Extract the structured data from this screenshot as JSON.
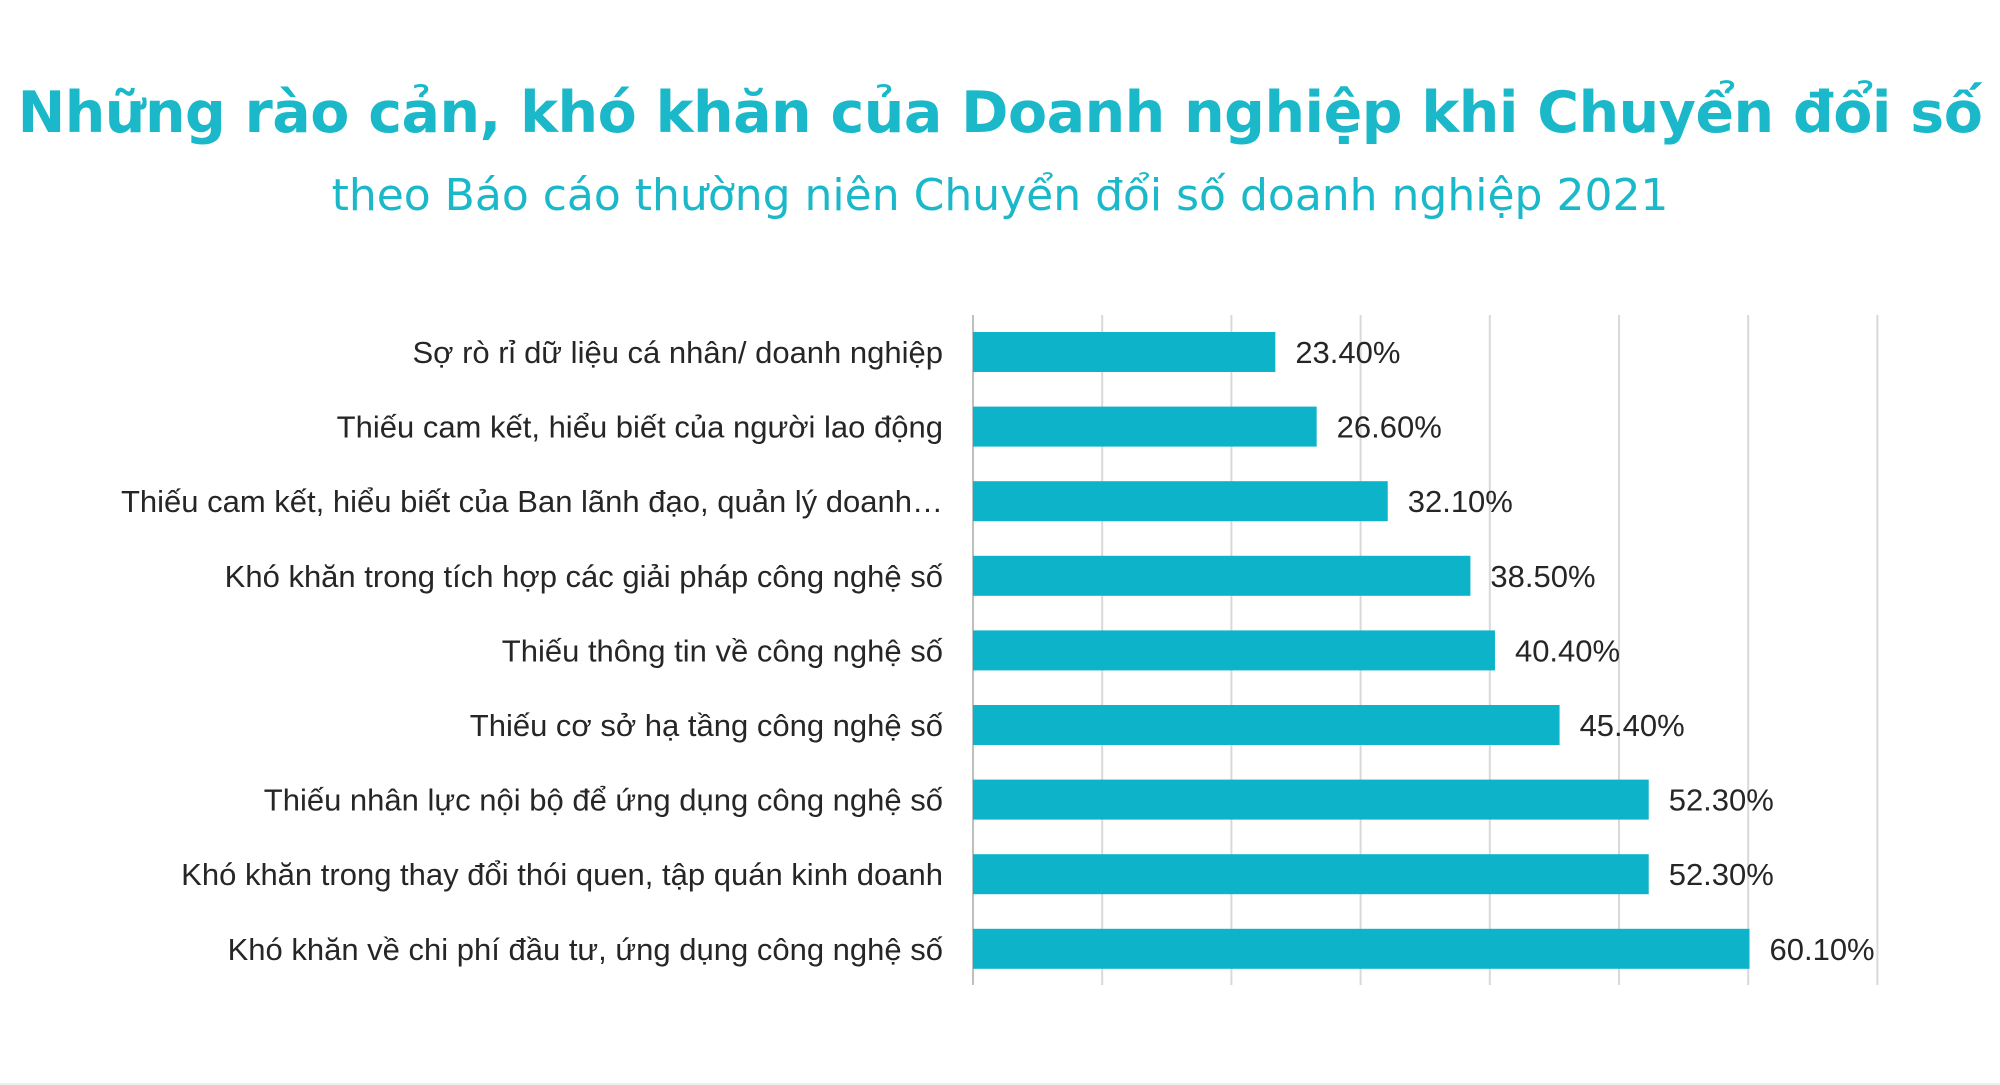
{
  "header": {
    "title": "Những rào cản, khó khăn của Doanh nghiệp khi Chuyển đổi số",
    "subtitle": "theo Báo cáo thường niên Chuyển đổi số doanh nghiệp 2021"
  },
  "colors": {
    "bar": "#0db3c9",
    "title": "#1ab8c9",
    "grid": "#d9d9d9",
    "text": "#262626"
  },
  "chart_data": {
    "type": "bar",
    "orientation": "horizontal",
    "title": "Những rào cản, khó khăn của Doanh nghiệp khi Chuyển đổi số",
    "subtitle": "theo Báo cáo thường niên Chuyển đổi số doanh nghiệp 2021",
    "categories": [
      "Sợ rò rỉ dữ liệu cá nhân/ doanh nghiệp",
      "Thiếu cam kết, hiểu biết của người lao động",
      "Thiếu cam kết, hiểu biết của Ban lãnh đạo, quản lý doanh…",
      "Khó khăn trong tích hợp các giải pháp công nghệ số",
      "Thiếu thông tin về công nghệ số",
      "Thiếu cơ sở hạ tầng công nghệ số",
      "Thiếu nhân lực nội bộ để ứng dụng  công nghệ số",
      "Khó khăn trong thay đổi thói quen, tập quán kinh doanh",
      "Khó khăn về chi phí đầu tư, ứng dụng công nghệ số"
    ],
    "values": [
      23.4,
      26.6,
      32.1,
      38.5,
      40.4,
      45.4,
      52.3,
      52.3,
      60.1
    ],
    "data_labels": [
      "23.40%",
      "26.60%",
      "32.10%",
      "38.50%",
      "40.40%",
      "45.40%",
      "52.30%",
      "52.30%",
      "60.10%"
    ],
    "xlim": [
      0,
      70
    ],
    "grid": true,
    "legend": "none"
  }
}
